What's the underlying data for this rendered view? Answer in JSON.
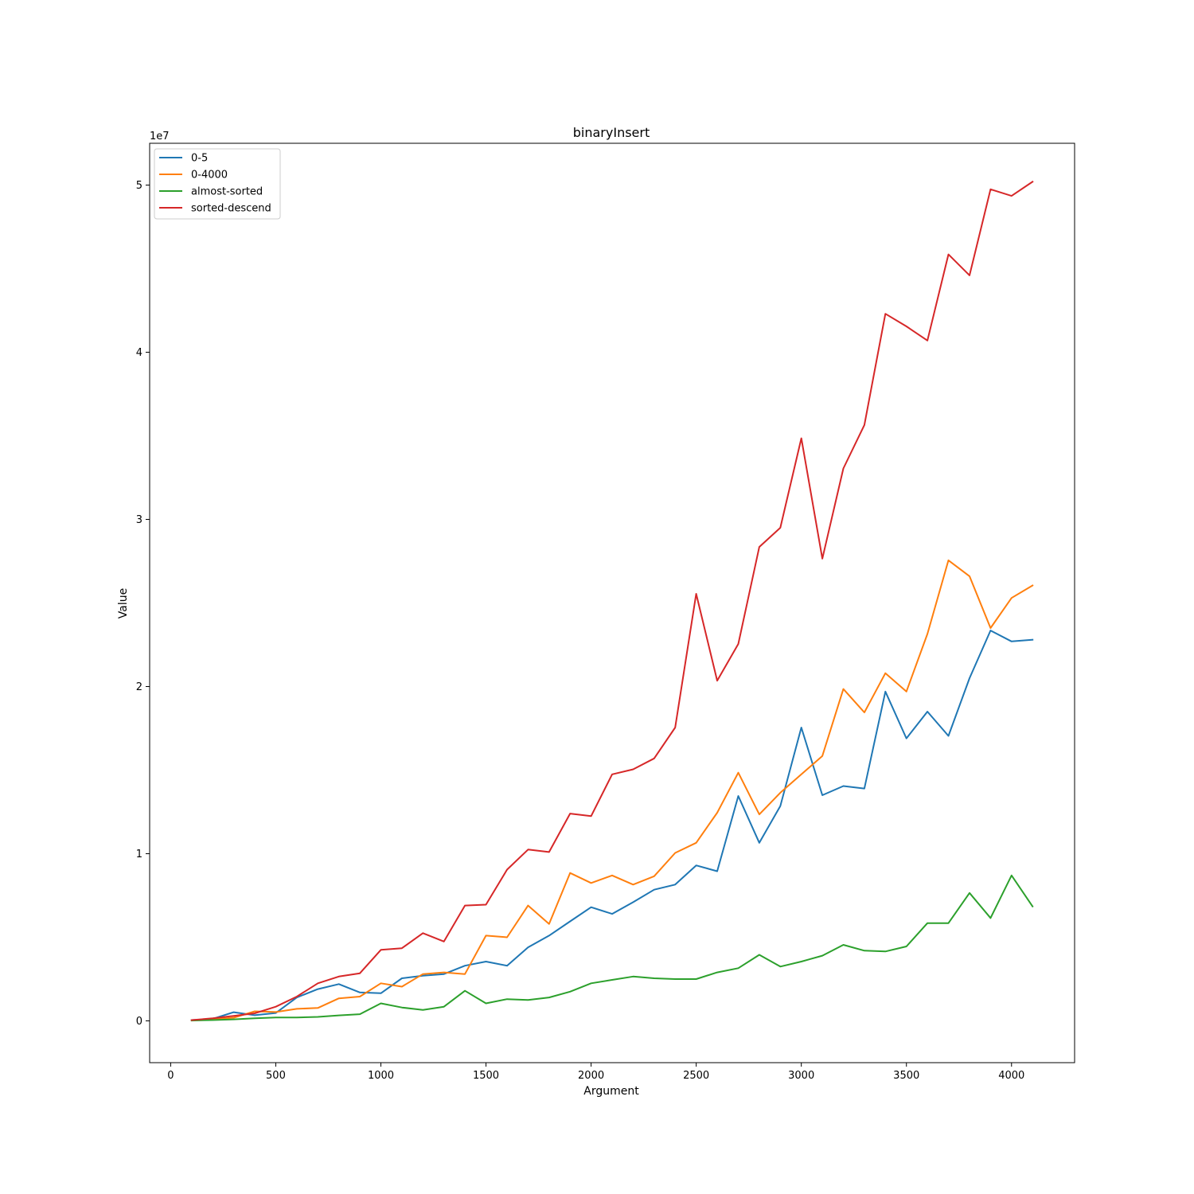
{
  "chart_data": {
    "type": "line",
    "title": "binaryInsert",
    "xlabel": "Argument",
    "ylabel": "Value",
    "y_offset_label": "1e7",
    "xlim": [
      -100,
      4300
    ],
    "ylim": [
      -2500000,
      52500000
    ],
    "x_ticks": [
      0,
      500,
      1000,
      1500,
      2000,
      2500,
      3000,
      3500,
      4000
    ],
    "x_tick_labels": [
      "0",
      "500",
      "1000",
      "1500",
      "2000",
      "2500",
      "3000",
      "3500",
      "4000"
    ],
    "y_ticks": [
      0,
      10000000,
      20000000,
      30000000,
      40000000,
      50000000
    ],
    "y_tick_labels": [
      "0",
      "1",
      "2",
      "3",
      "4",
      "5"
    ],
    "grid": false,
    "legend_position": "top-left",
    "x": [
      100,
      200,
      300,
      400,
      500,
      600,
      700,
      800,
      900,
      1000,
      1100,
      1200,
      1300,
      1400,
      1500,
      1600,
      1700,
      1800,
      1900,
      2000,
      2100,
      2200,
      2300,
      2400,
      2500,
      2600,
      2700,
      2800,
      2900,
      3000,
      3100,
      3200,
      3300,
      3400,
      3500,
      3600,
      3700,
      3800,
      3900,
      4000,
      4100
    ],
    "series": [
      {
        "name": "0-5",
        "color": "#1f77b4",
        "values": [
          50000,
          120000,
          520000,
          340000,
          470000,
          1400000,
          1900000,
          2200000,
          1700000,
          1650000,
          2550000,
          2700000,
          2800000,
          3300000,
          3550000,
          3300000,
          4400000,
          5100000,
          5950000,
          6800000,
          6400000,
          7100000,
          7850000,
          8150000,
          9300000,
          8950000,
          13450000,
          10650000,
          12850000,
          17550000,
          13500000,
          14050000,
          13900000,
          19700000,
          16900000,
          18500000,
          17050000,
          20500000,
          23350000,
          22700000,
          22800000
        ]
      },
      {
        "name": "0-4000",
        "color": "#ff7f0e",
        "values": [
          40000,
          90000,
          190000,
          570000,
          530000,
          720000,
          770000,
          1350000,
          1450000,
          2250000,
          2050000,
          2800000,
          2900000,
          2800000,
          5100000,
          5000000,
          6900000,
          5800000,
          8850000,
          8250000,
          8700000,
          8150000,
          8650000,
          10050000,
          10650000,
          12450000,
          14850000,
          12350000,
          13650000,
          14750000,
          15850000,
          19850000,
          18450000,
          20800000,
          19700000,
          23150000,
          27550000,
          26600000,
          23500000,
          25300000,
          26050000
        ]
      },
      {
        "name": "almost-sorted",
        "color": "#2ca02c",
        "values": [
          20000,
          50000,
          90000,
          150000,
          200000,
          200000,
          240000,
          330000,
          400000,
          1050000,
          800000,
          650000,
          850000,
          1800000,
          1050000,
          1300000,
          1250000,
          1400000,
          1750000,
          2250000,
          2450000,
          2650000,
          2550000,
          2500000,
          2500000,
          2900000,
          3150000,
          3950000,
          3250000,
          3550000,
          3900000,
          4550000,
          4200000,
          4150000,
          4450000,
          5850000,
          5850000,
          7650000,
          6150000,
          8700000,
          6850000
        ]
      },
      {
        "name": "sorted-descend",
        "color": "#d62728",
        "values": [
          50000,
          150000,
          300000,
          450000,
          850000,
          1450000,
          2250000,
          2650000,
          2850000,
          4250000,
          4350000,
          5250000,
          4750000,
          6900000,
          6950000,
          9050000,
          10250000,
          10100000,
          12400000,
          12250000,
          14750000,
          15050000,
          15700000,
          17550000,
          25550000,
          20350000,
          22550000,
          28350000,
          29500000,
          34850000,
          27650000,
          33050000,
          35650000,
          42300000,
          41550000,
          40700000,
          45850000,
          44600000,
          49750000,
          49350000,
          50200000
        ]
      }
    ]
  }
}
